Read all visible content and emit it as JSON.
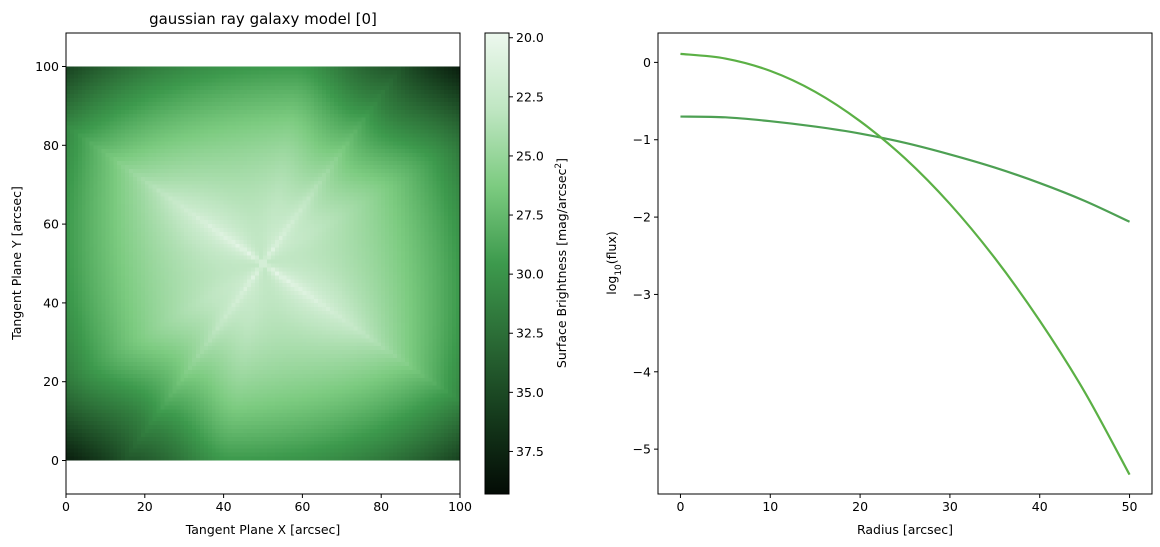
{
  "chart_data": [
    {
      "type": "heatmap",
      "title": "gaussian ray galaxy model [0]",
      "xlabel": "Tangent Plane X [arcsec]",
      "ylabel": "Tangent Plane Y [arcsec]",
      "xlim": [
        0,
        100
      ],
      "ylim": [
        -8.5,
        108.5
      ],
      "image_extent": [
        0,
        100,
        0,
        100
      ],
      "xticks": [
        0,
        20,
        40,
        60,
        80,
        100
      ],
      "yticks": [
        0,
        20,
        40,
        60,
        80,
        100
      ],
      "center": [
        50,
        50
      ],
      "position_angle_deg": -35,
      "surface_brightness_min": 19.8,
      "surface_brightness_max": 39.3,
      "colormap": [
        "#edf8ee",
        "#bfe6c2",
        "#7ccb80",
        "#3d9a4d",
        "#2a6a35",
        "#153a1c",
        "#030b05"
      ],
      "colorbar": {
        "label": "Surface Brightness [mag/arcsec",
        "label_sup": "2",
        "label_end": "]",
        "ticks": [
          "20.0",
          "22.5",
          "25.0",
          "27.5",
          "30.0",
          "32.5",
          "35.0",
          "37.5"
        ],
        "tick_values": [
          20,
          22.5,
          25,
          27.5,
          30,
          32.5,
          35,
          37.5
        ],
        "range": [
          19.8,
          39.3
        ]
      },
      "grid": false
    },
    {
      "type": "line",
      "title": "",
      "xlabel": "Radius [arcsec]",
      "ylabel_base": "log",
      "ylabel_sub": "10",
      "ylabel_rest": "(flux)",
      "xlim": [
        -2.5,
        52.5
      ],
      "ylim": [
        -5.58,
        0.38
      ],
      "xticks": [
        "0",
        "10",
        "20",
        "30",
        "40",
        "50"
      ],
      "xtick_values": [
        0,
        10,
        20,
        30,
        40,
        50
      ],
      "yticks": [
        "0",
        "−1",
        "−2",
        "−3",
        "−4",
        "−5"
      ],
      "ytick_values": [
        0,
        -1,
        -2,
        -3,
        -4,
        -5
      ],
      "series": [
        {
          "color": "#4da053",
          "x": [
            0,
            5,
            10,
            15,
            20,
            25,
            30,
            35,
            40,
            45,
            50
          ],
          "values": [
            -0.7,
            -0.71,
            -0.76,
            -0.83,
            -0.92,
            -1.04,
            -1.19,
            -1.36,
            -1.56,
            -1.79,
            -2.06
          ]
        },
        {
          "color": "#5bb045",
          "x": [
            0,
            5,
            10,
            15,
            20,
            25,
            30,
            35,
            40,
            45,
            50
          ],
          "values": [
            0.11,
            0.05,
            -0.11,
            -0.38,
            -0.76,
            -1.24,
            -1.83,
            -2.53,
            -3.34,
            -4.26,
            -5.33
          ]
        }
      ],
      "grid": false
    }
  ]
}
